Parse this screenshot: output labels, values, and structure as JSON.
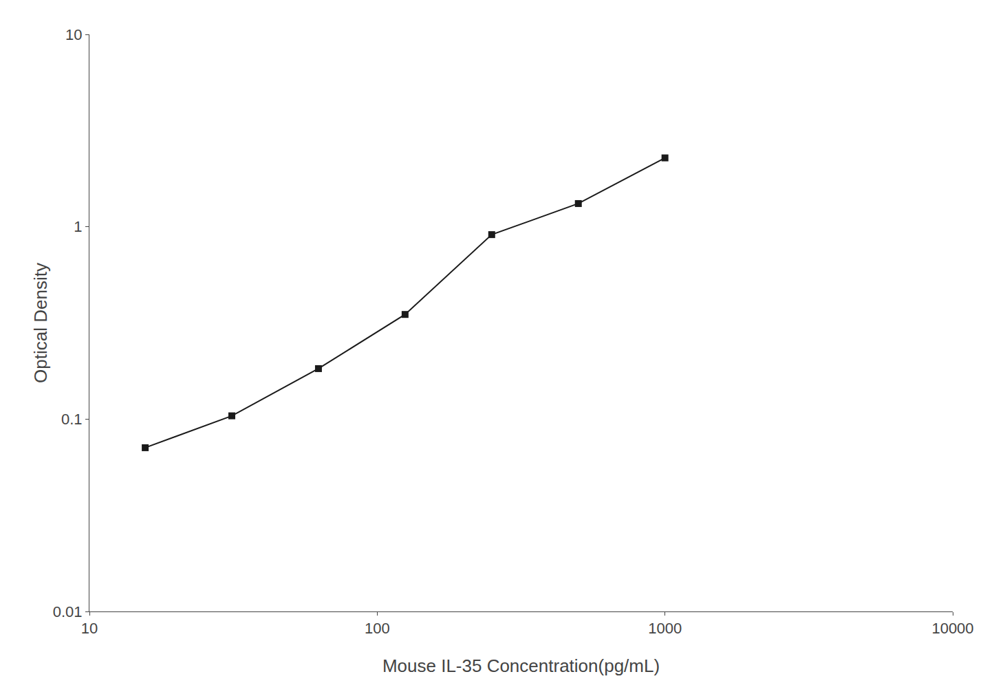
{
  "chart_data": {
    "type": "line",
    "x": [
      15.625,
      31.25,
      62.5,
      125,
      250,
      500,
      1000
    ],
    "values": [
      0.071,
      0.104,
      0.183,
      0.35,
      0.91,
      1.32,
      2.28
    ],
    "xlabel": "Mouse IL-35 Concentration(pg/mL)",
    "ylabel": "Optical Density",
    "xlim": [
      10,
      10000
    ],
    "ylim": [
      0.01,
      10
    ],
    "xticks": [
      10,
      100,
      1000,
      10000
    ],
    "yticks": [
      0.01,
      0.1,
      1,
      10
    ],
    "log": true,
    "grid": false,
    "color": "#1a1a1a",
    "marker": "square",
    "line_style": "solid"
  }
}
